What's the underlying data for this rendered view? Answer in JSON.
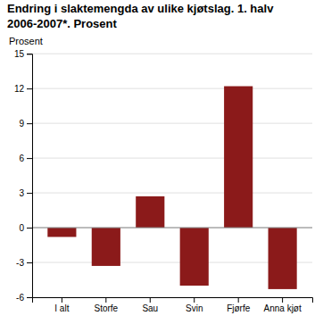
{
  "chart_data": {
    "type": "bar",
    "title": "Endring i slaktemengda av ulike kjøtslag. 1. halv\n2006-2007*. Prosent",
    "ylabel": "Prosent",
    "categories": [
      "I alt",
      "Storfe",
      "Sau",
      "Svin",
      "Fjørfe",
      "Anna kjøt"
    ],
    "values": [
      -0.8,
      -3.3,
      2.7,
      -5.0,
      12.2,
      -5.3
    ],
    "color": "#8B1A1A",
    "ylim": [
      -6,
      15
    ],
    "yticks": [
      -6,
      -3,
      0,
      3,
      6,
      9,
      12,
      15
    ],
    "grid": true
  }
}
